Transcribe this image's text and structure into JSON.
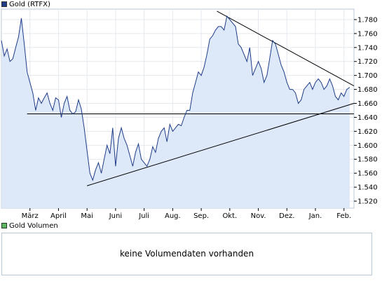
{
  "price_legend": {
    "label": "Gold (RTFX)",
    "color": "#1f3c88"
  },
  "volume_legend": {
    "label": "Gold Volumen",
    "color": "#5cb85c"
  },
  "volume_message": "keine Volumendaten vorhanden",
  "chart_data": {
    "type": "area",
    "title": "",
    "xlabel": "",
    "ylabel": "",
    "ylim": [
      1510,
      1795
    ],
    "yticks": [
      1520,
      1540,
      1560,
      1580,
      1600,
      1620,
      1640,
      1660,
      1680,
      1700,
      1720,
      1740,
      1760,
      1780
    ],
    "ytick_labels": [
      "1.520",
      "1.540",
      "1.560",
      "1.580",
      "1.600",
      "1.620",
      "1.640",
      "1.660",
      "1.680",
      "1.700",
      "1.720",
      "1.740",
      "1.760",
      "1.780"
    ],
    "x_range": [
      0,
      12.35
    ],
    "xticks": [
      {
        "label": "März",
        "x": 1.0
      },
      {
        "label": "April",
        "x": 2.0
      },
      {
        "label": "Mai",
        "x": 3.0
      },
      {
        "label": "Juni",
        "x": 4.0
      },
      {
        "label": "Juli",
        "x": 5.0
      },
      {
        "label": "Aug.",
        "x": 6.0
      },
      {
        "label": "Sep.",
        "x": 7.0
      },
      {
        "label": "Okt.",
        "x": 8.0
      },
      {
        "label": "Nov.",
        "x": 9.0
      },
      {
        "label": "Dez.",
        "x": 10.0
      },
      {
        "label": "Jan.",
        "x": 11.0
      },
      {
        "label": "Feb.",
        "x": 12.0
      }
    ],
    "grid": true,
    "line_color": "#1f3c88",
    "fill_color": "#dde8f8",
    "series": [
      {
        "x": [
          0.0,
          0.1,
          0.2,
          0.3,
          0.4,
          0.5,
          0.6,
          0.7,
          0.8,
          0.9,
          1.0,
          1.1,
          1.2,
          1.3,
          1.4,
          1.5,
          1.6,
          1.7,
          1.8,
          1.9,
          2.0,
          2.1,
          2.2,
          2.3,
          2.4,
          2.5,
          2.6,
          2.7,
          2.8,
          2.9,
          3.0,
          3.1,
          3.2,
          3.3,
          3.4,
          3.5,
          3.6,
          3.7,
          3.8,
          3.9,
          4.0,
          4.1,
          4.2,
          4.3,
          4.4,
          4.5,
          4.6,
          4.7,
          4.8,
          4.9,
          5.0,
          5.1,
          5.2,
          5.3,
          5.4,
          5.5,
          5.6,
          5.7,
          5.8,
          5.9,
          6.0,
          6.1,
          6.2,
          6.3,
          6.4,
          6.5,
          6.6,
          6.7,
          6.8,
          6.9,
          7.0,
          7.1,
          7.2,
          7.3,
          7.4,
          7.5,
          7.6,
          7.7,
          7.8,
          7.9,
          8.0,
          8.1,
          8.2,
          8.3,
          8.4,
          8.5,
          8.6,
          8.7,
          8.8,
          8.9,
          9.0,
          9.1,
          9.2,
          9.3,
          9.4,
          9.5,
          9.6,
          9.7,
          9.8,
          9.9,
          10.0,
          10.1,
          10.2,
          10.3,
          10.4,
          10.5,
          10.6,
          10.7,
          10.8,
          10.9,
          11.0,
          11.1,
          11.2,
          11.3,
          11.4,
          11.5,
          11.6,
          11.7,
          11.8,
          11.9,
          12.0,
          12.1,
          12.2
        ],
        "y": [
          1750,
          1728,
          1738,
          1720,
          1724,
          1740,
          1755,
          1782,
          1745,
          1705,
          1690,
          1675,
          1650,
          1668,
          1660,
          1668,
          1675,
          1660,
          1650,
          1668,
          1665,
          1640,
          1660,
          1670,
          1650,
          1645,
          1648,
          1665,
          1652,
          1625,
          1592,
          1560,
          1550,
          1565,
          1575,
          1560,
          1580,
          1600,
          1588,
          1625,
          1570,
          1610,
          1625,
          1610,
          1600,
          1585,
          1570,
          1590,
          1602,
          1580,
          1575,
          1570,
          1580,
          1598,
          1590,
          1610,
          1620,
          1625,
          1605,
          1630,
          1620,
          1625,
          1630,
          1628,
          1640,
          1650,
          1650,
          1675,
          1690,
          1705,
          1700,
          1712,
          1730,
          1752,
          1757,
          1765,
          1770,
          1770,
          1765,
          1785,
          1780,
          1775,
          1770,
          1745,
          1740,
          1730,
          1720,
          1740,
          1700,
          1710,
          1720,
          1710,
          1690,
          1700,
          1725,
          1750,
          1745,
          1730,
          1715,
          1705,
          1690,
          1680,
          1680,
          1675,
          1660,
          1665,
          1680,
          1685,
          1690,
          1680,
          1690,
          1695,
          1690,
          1680,
          1685,
          1695,
          1685,
          1670,
          1665,
          1675,
          1670,
          1680,
          1683
        ]
      }
    ],
    "horizontal_lines": [
      {
        "y": 1645,
        "x_from": 0.9,
        "x_to": 12.35
      }
    ],
    "trendlines": [
      {
        "x1": 3.0,
        "y1": 1542,
        "x2": 12.35,
        "y2": 1660
      },
      {
        "x1": 7.55,
        "y1": 1792,
        "x2": 12.35,
        "y2": 1685
      }
    ]
  }
}
